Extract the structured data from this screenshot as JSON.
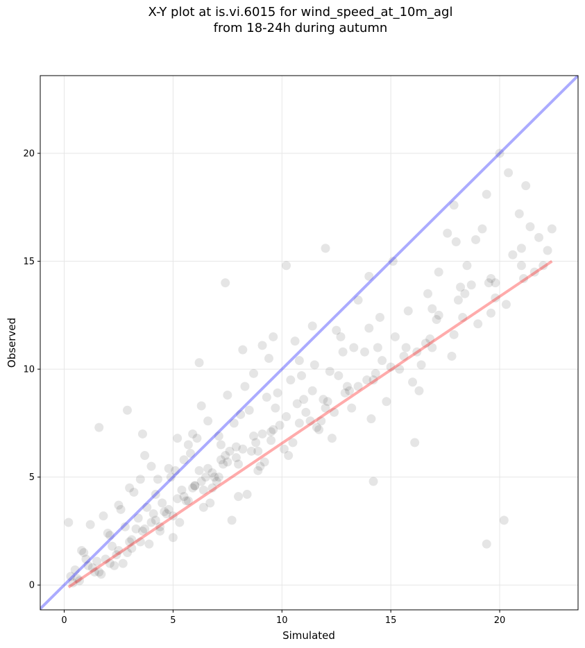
{
  "chart_data": {
    "type": "scatter",
    "title_line1": "X-Y plot at is.vi.6015 for wind_speed_at_10m_agl",
    "title_line2": "from 18-24h during autumn",
    "xlabel": "Simulated",
    "ylabel": "Observed",
    "xlim": [
      -1.1,
      23.6
    ],
    "ylim": [
      -1.15,
      23.6
    ],
    "xticks": [
      0,
      5,
      10,
      15,
      20
    ],
    "yticks": [
      0,
      5,
      10,
      15,
      20
    ],
    "grid": true,
    "colors": {
      "points": "#000000",
      "identity_line": "#0000ff",
      "fit_line": "#ff0000"
    },
    "identity_line": {
      "slope": 1,
      "intercept": 0
    },
    "fit_line": {
      "x": [
        0.2,
        22.4
      ],
      "y": [
        -0.1,
        15.0
      ]
    },
    "points": {
      "x": [
        20.2,
        19.4,
        16.1,
        16.3,
        14.2,
        11.4,
        10.2,
        7.4,
        9.6,
        6.2,
        2.9,
        1.6,
        4.0,
        3.6,
        0.2,
        15.8,
        20.0,
        18.9,
        15.1,
        14.0,
        12.0,
        13.5,
        14.4,
        21.4,
        22.4,
        21.0,
        20.4,
        19.4,
        17.9,
        18.0,
        17.6,
        19.2,
        17.2,
        21.2,
        20.9,
        22.2,
        19.8,
        19.6,
        18.2,
        16.7,
        18.5,
        17.9,
        16.9,
        16.4,
        14.2,
        14.0,
        12.8,
        12.5,
        11.9,
        13.2,
        10.8,
        11.4,
        11.8,
        9.3,
        9.1,
        8.7,
        8.2,
        7.2,
        6.3,
        5.9,
        5.2,
        4.8,
        4.2,
        3.7,
        3.0,
        2.5,
        1.8,
        1.2,
        0.8,
        0.5,
        0.3,
        1.0,
        2.1,
        2.7,
        3.3,
        3.9,
        4.6,
        5.3,
        6.0,
        6.7,
        7.3,
        8.0,
        8.6,
        9.2,
        9.9,
        10.5,
        11.1,
        11.7,
        12.3,
        12.9,
        13.5,
        14.1,
        14.8,
        15.4,
        16.0,
        16.6,
        17.2,
        17.8,
        18.4,
        19.0,
        19.6,
        20.3,
        21.0,
        21.6,
        6.8,
        7.9,
        9.5,
        10.7,
        12.6,
        13.8,
        15.2,
        16.9,
        18.7,
        20.6,
        21.8,
        5.6,
        4.4,
        3.1,
        2.3,
        1.4,
        7.7,
        8.4,
        9.0,
        10.1,
        11.3,
        12.1,
        13.0,
        14.6,
        15.7,
        17.1,
        18.1,
        19.5,
        5.0,
        6.4,
        7.0,
        8.9,
        10.3,
        11.6,
        12.4,
        13.9,
        15.0,
        16.2,
        4.9,
        5.7,
        6.6,
        7.5,
        8.3,
        9.4,
        10.6,
        11.0,
        12.2,
        13.3,
        14.5,
        3.5,
        4.1,
        5.5,
        6.1,
        6.9,
        7.6,
        8.1,
        8.8,
        9.7,
        10.4,
        11.5,
        12.7,
        2.0,
        2.6,
        3.2,
        3.8,
        4.3,
        5.1,
        5.8,
        6.5,
        7.1,
        7.8,
        8.5,
        9.8,
        10.9,
        0.9,
        1.5,
        2.2,
        2.8,
        3.4,
        4.5,
        5.4,
        6.2,
        7.4,
        8.7,
        9.6,
        10.2,
        1.1,
        1.7,
        2.4,
        3.0,
        3.6,
        4.0,
        4.7,
        5.2,
        5.9,
        6.3,
        6.6,
        7.2,
        7.9,
        0.6,
        1.3,
        1.9,
        2.5,
        3.1,
        3.7,
        4.2,
        4.8,
        5.5,
        6.0,
        6.8,
        7.5,
        8.2,
        9.1,
        0.4,
        0.7,
        1.6,
        2.1,
        2.9,
        3.5,
        4.4,
        5.0,
        5.7,
        6.4,
        7.1,
        8.0,
        8.9,
        9.5,
        10.8,
        12.0,
        13.1,
        14.3,
        15.6,
        16.8,
        18.3,
        19.8,
        21.1,
        22.0
      ],
      "y": [
        3.0,
        1.9,
        6.6,
        9.0,
        4.8,
        12.0,
        14.8,
        14.0,
        11.5,
        10.3,
        8.1,
        7.3,
        5.5,
        7.0,
        2.9,
        12.7,
        20.0,
        16.0,
        15.0,
        14.3,
        15.6,
        13.2,
        11.0,
        16.6,
        16.5,
        14.8,
        19.1,
        18.1,
        17.6,
        15.9,
        16.3,
        16.5,
        14.5,
        18.5,
        17.2,
        15.5,
        14.0,
        12.6,
        13.8,
        13.5,
        14.8,
        11.6,
        11.0,
        10.2,
        9.5,
        11.9,
        10.8,
        11.8,
        8.6,
        8.2,
        10.4,
        9.0,
        7.6,
        8.7,
        11.1,
        9.8,
        10.9,
        6.5,
        8.3,
        7.0,
        6.8,
        5.4,
        4.2,
        6.0,
        4.5,
        3.7,
        3.2,
        2.8,
        1.6,
        0.7,
        0.4,
        1.2,
        2.3,
        1.0,
        2.6,
        1.9,
        3.4,
        2.9,
        4.6,
        3.8,
        5.6,
        4.1,
        6.2,
        5.7,
        7.4,
        6.6,
        8.0,
        7.2,
        6.8,
        8.9,
        9.2,
        7.7,
        8.5,
        10.0,
        9.4,
        11.2,
        12.5,
        10.6,
        13.5,
        12.1,
        14.2,
        13.0,
        15.6,
        14.5,
        4.5,
        5.9,
        7.1,
        8.4,
        9.7,
        10.8,
        11.5,
        12.8,
        13.9,
        15.3,
        16.1,
        3.9,
        2.5,
        1.7,
        0.9,
        0.6,
        3.0,
        4.2,
        5.5,
        6.3,
        7.6,
        8.5,
        9.2,
        10.4,
        11.0,
        12.3,
        13.2,
        14.0,
        2.2,
        3.6,
        4.8,
        5.3,
        6.0,
        7.3,
        8.0,
        9.5,
        10.1,
        10.8,
        5.0,
        6.5,
        7.6,
        8.8,
        9.2,
        10.5,
        11.3,
        8.6,
        9.9,
        11.0,
        12.4,
        4.9,
        3.3,
        5.8,
        6.8,
        5.0,
        6.2,
        7.9,
        6.6,
        8.2,
        9.5,
        10.2,
        11.5,
        2.4,
        3.5,
        4.3,
        3.6,
        4.9,
        5.3,
        6.1,
        5.0,
        6.9,
        7.5,
        8.1,
        8.9,
        9.7,
        1.5,
        1.1,
        1.8,
        2.7,
        3.1,
        3.8,
        4.4,
        5.3,
        6.0,
        6.9,
        7.2,
        7.8,
        0.9,
        0.5,
        1.4,
        2.0,
        2.5,
        2.9,
        3.3,
        4.0,
        4.5,
        4.8,
        5.4,
        5.8,
        6.4,
        0.3,
        0.8,
        1.2,
        1.6,
        2.1,
        2.6,
        3.0,
        3.5,
        4.1,
        4.6,
        5.2,
        5.7,
        6.3,
        7.0,
        0.1,
        0.2,
        0.6,
        1.0,
        1.5,
        2.0,
        2.7,
        3.2,
        3.9,
        4.4,
        5.0,
        5.6,
        6.2,
        6.7,
        7.5,
        8.2,
        9.0,
        9.8,
        10.6,
        11.4,
        12.4,
        13.3,
        14.2,
        14.8
      ]
    }
  }
}
